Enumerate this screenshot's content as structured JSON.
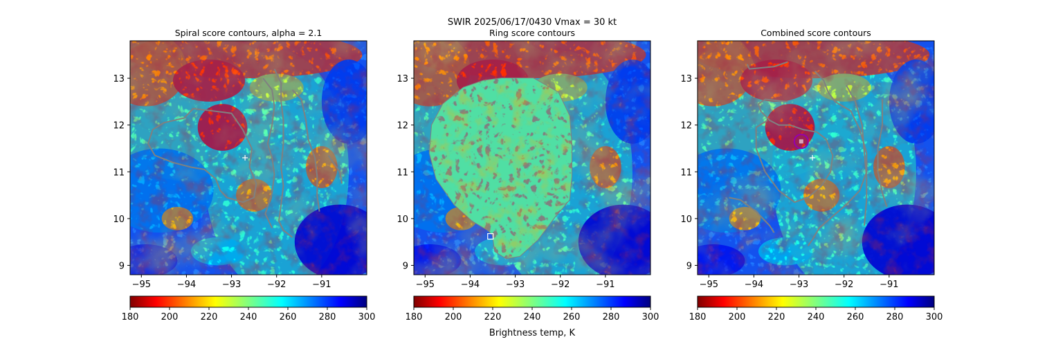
{
  "suptitle": "SWIR  2025/06/17/0430    Vmax = 30 kt",
  "colorbar_label": "Brightness temp, K",
  "colors": {
    "contour": "#808080",
    "marker": "#ffffff",
    "circle": "#9400b0"
  },
  "chart_data": [
    {
      "type": "heatmap",
      "title": "Spiral score contours, alpha =  2.1",
      "colormap": "jet_r",
      "xlim": [
        -95.25,
        -90.0
      ],
      "ylim": [
        8.8,
        13.8
      ],
      "x_ticks": [
        -95,
        -94,
        -93,
        -92,
        -91
      ],
      "y_ticks": [
        9,
        10,
        11,
        12,
        13
      ],
      "colorbar": {
        "range": [
          180,
          300
        ],
        "ticks": [
          180,
          200,
          220,
          240,
          260,
          280,
          300
        ]
      },
      "center_marker": {
        "shape": "plus",
        "lon": -92.7,
        "lat": 11.3
      },
      "contours": "spiral"
    },
    {
      "type": "heatmap",
      "title": "Ring score contours",
      "colormap": "jet_r",
      "xlim": [
        -95.25,
        -90.0
      ],
      "ylim": [
        8.8,
        13.8
      ],
      "x_ticks": [
        -95,
        -94,
        -93,
        -92,
        -91
      ],
      "y_ticks": [
        9,
        10,
        11,
        12,
        13
      ],
      "colorbar": {
        "range": [
          180,
          300
        ],
        "ticks": [
          180,
          200,
          220,
          240,
          260,
          280,
          300
        ]
      },
      "center_marker": {
        "shape": "square",
        "lon": -93.55,
        "lat": 9.62
      },
      "contours": "ring"
    },
    {
      "type": "heatmap",
      "title": "Combined score contours",
      "colormap": "jet_r",
      "xlim": [
        -95.25,
        -90.0
      ],
      "ylim": [
        8.8,
        13.8
      ],
      "x_ticks": [
        -95,
        -94,
        -93,
        -92,
        -91
      ],
      "y_ticks": [
        9,
        10,
        11,
        12,
        13
      ],
      "colorbar": {
        "range": [
          180,
          300
        ],
        "ticks": [
          180,
          200,
          220,
          240,
          260,
          280,
          300
        ]
      },
      "center_marker": {
        "shape": "plus",
        "lon": -92.7,
        "lat": 11.3
      },
      "best_center": {
        "shape": "circle",
        "lon": -92.95,
        "lat": 11.65
      },
      "contours": "combined"
    }
  ]
}
